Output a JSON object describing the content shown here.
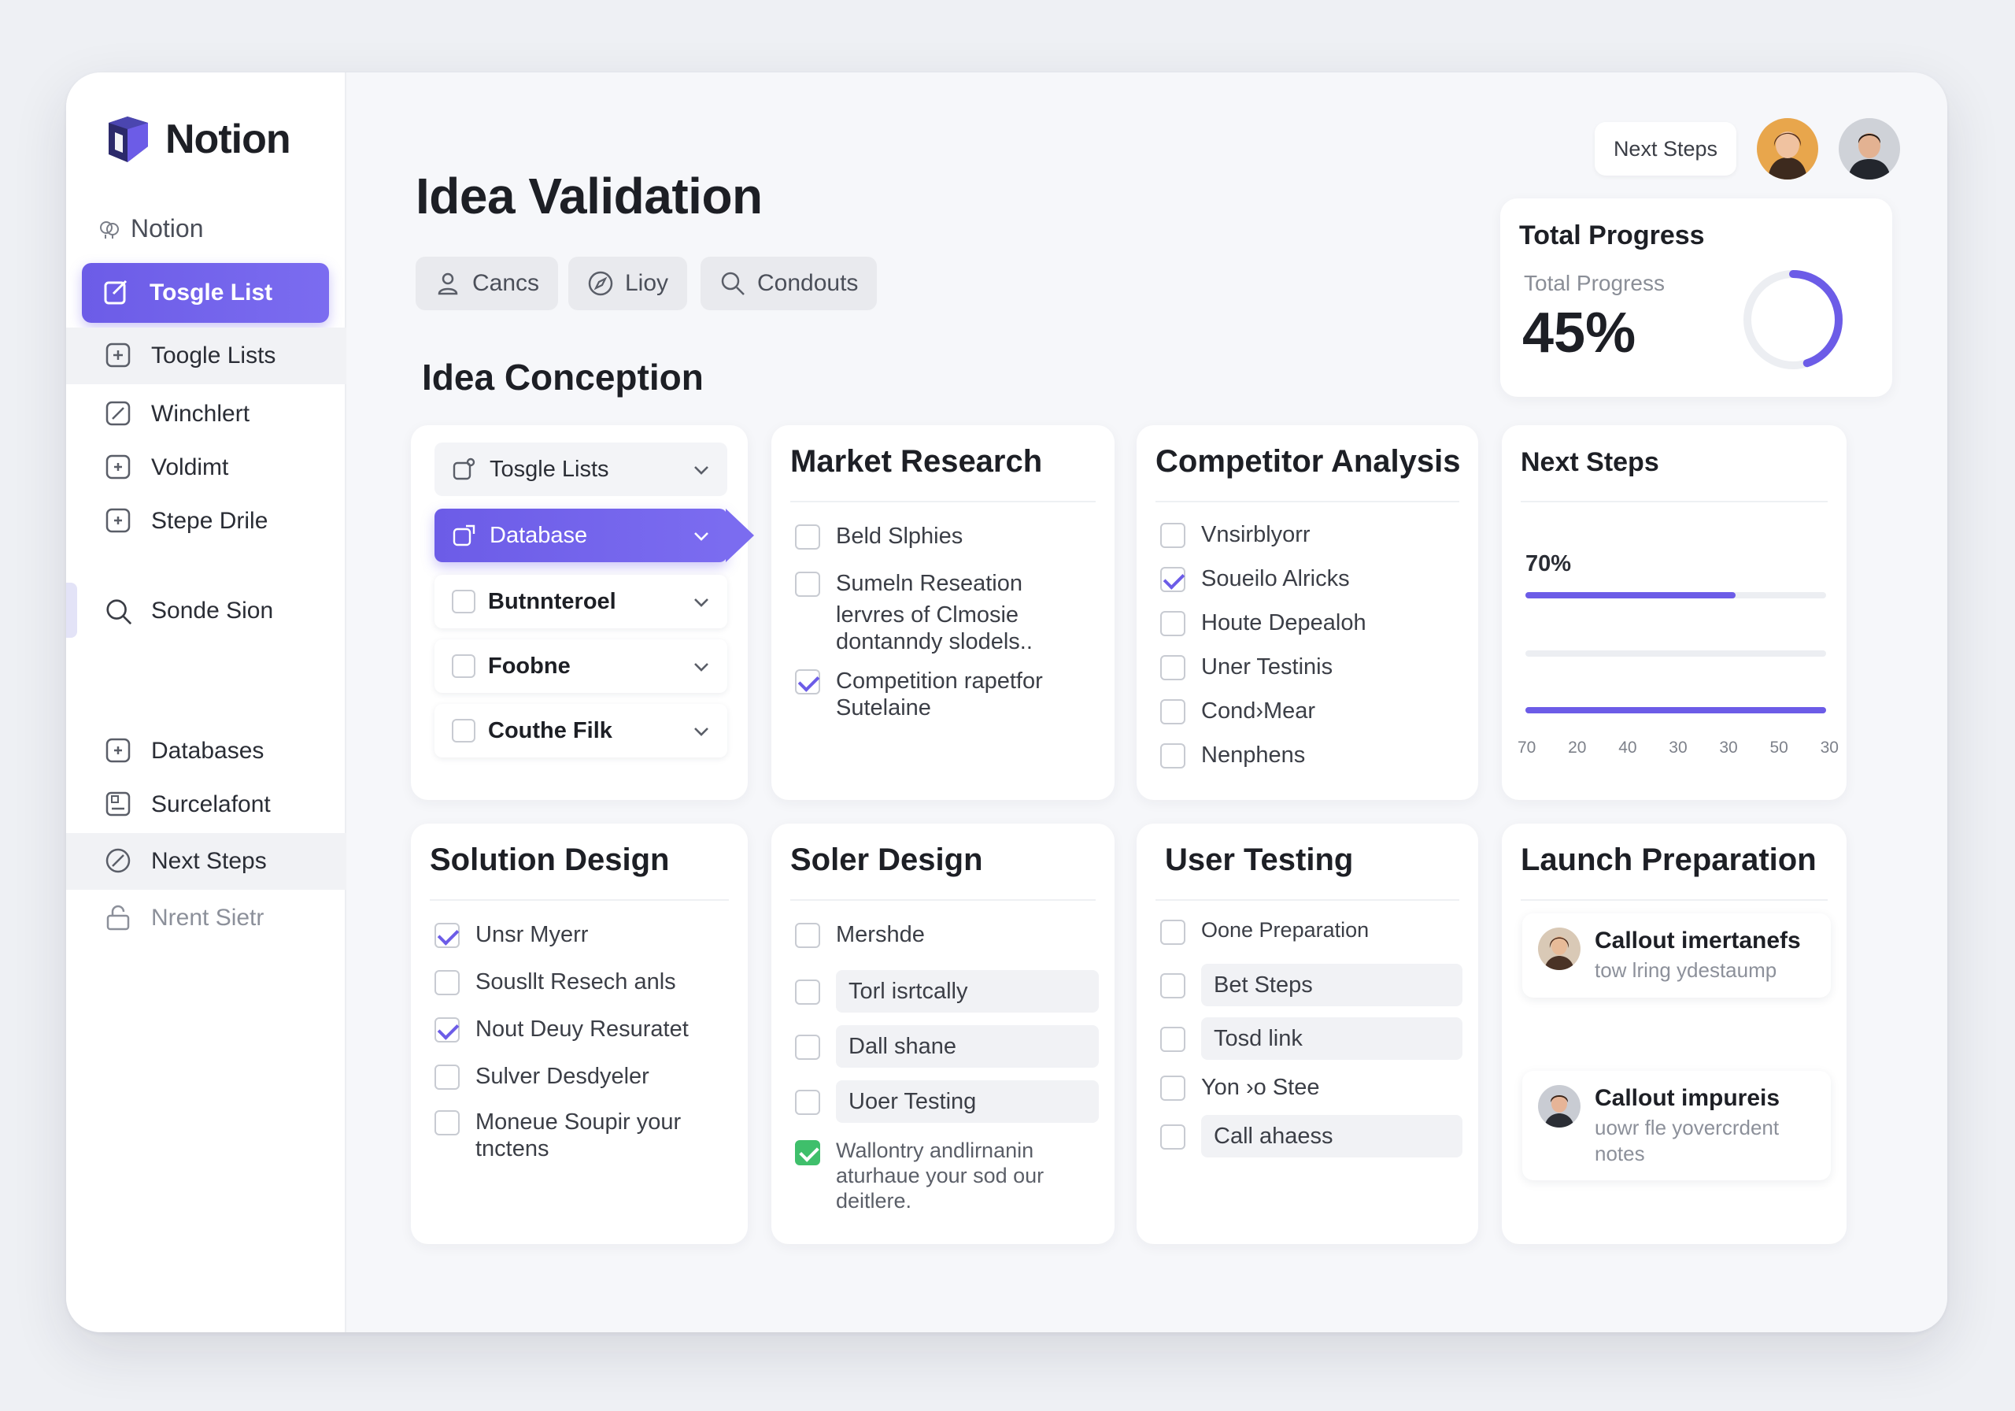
{
  "brand": {
    "name": "Notion"
  },
  "sidebar": {
    "workspace": "Notion",
    "items": [
      {
        "label": "Tosgle List"
      },
      {
        "label": "Toogle Lists"
      },
      {
        "label": "Winchlert"
      },
      {
        "label": "Voldimt"
      },
      {
        "label": "Stepe Drile"
      },
      {
        "label": "Sonde Sion"
      },
      {
        "label": "Databases"
      },
      {
        "label": "Surcelafont"
      },
      {
        "label": "Next Steps"
      },
      {
        "label": "Nrent Sietr"
      }
    ]
  },
  "header": {
    "title": "Idea Validation",
    "chips": [
      {
        "label": "Cancs",
        "icon": "user-icon"
      },
      {
        "label": "Lioy",
        "icon": "compass-icon"
      },
      {
        "label": "Condouts",
        "icon": "search-icon"
      }
    ],
    "pill": "Next Steps"
  },
  "section": {
    "title": "Idea Conception"
  },
  "toggle_list": {
    "items": [
      {
        "label": "Tosgle Lists"
      },
      {
        "label": "Database"
      },
      {
        "label": "Butnnteroel"
      },
      {
        "label": "Foobne"
      },
      {
        "label": "Couthe Filk"
      }
    ]
  },
  "market_research": {
    "title": "Market Research",
    "items": [
      {
        "label": "Beld Slphies",
        "checked": false
      },
      {
        "label": "Sumeln Reseation",
        "checked": false
      },
      {
        "label": "lervres of Clmosie dontanndy slodels..",
        "checked": null
      },
      {
        "label": "Competition rapetfor Sutelaine",
        "checked": true
      }
    ]
  },
  "competitor_analysis": {
    "title": "Competitor Analysis",
    "items": [
      {
        "label": "Vnsirblyorr",
        "checked": false
      },
      {
        "label": "Soueilo Alricks",
        "checked": true
      },
      {
        "label": "Houte Depealoh",
        "checked": false
      },
      {
        "label": "Uner Testinis",
        "checked": false
      },
      {
        "label": "Cond›Mear",
        "checked": false
      },
      {
        "label": "Nenphens",
        "checked": false
      }
    ]
  },
  "total_progress": {
    "title": "Total Progress",
    "label": "Total Progress",
    "value": "45%",
    "fraction": 0.45,
    "accent": "#6c5ce7"
  },
  "next_steps": {
    "title": "Next Steps",
    "value_label": "70%",
    "bar1": 0.7,
    "bar2": 0.0,
    "bar3": 1.0,
    "axis": [
      "70",
      "20",
      "40",
      "30",
      "30",
      "50",
      "30"
    ]
  },
  "solution_design": {
    "title": "Solution Design",
    "items": [
      {
        "label": "Unsr Myerr",
        "checked": true
      },
      {
        "label": "Sousllt Resech anls",
        "checked": false
      },
      {
        "label": "Nout Deuy Resuratet",
        "checked": true
      },
      {
        "label": "Sulver Desdyeler",
        "checked": false
      },
      {
        "label": "Moneue Soupir your tnctens",
        "checked": false
      }
    ]
  },
  "soler_design": {
    "title": "Soler Design",
    "items": [
      {
        "label": "Mershde",
        "field": false
      },
      {
        "label": "Torl isrtcally",
        "field": true
      },
      {
        "label": "Dall shane",
        "field": true
      },
      {
        "label": "Uoer Testing",
        "field": true
      },
      {
        "label": "Wallontry andlirnanin aturhaue your sod our deitlere.",
        "field": false,
        "green": true
      }
    ]
  },
  "user_testing": {
    "title": "User Testing",
    "items": [
      {
        "label": "Oone Preparation",
        "field": false
      },
      {
        "label": "Bet Steps",
        "field": true
      },
      {
        "label": "Tosd link",
        "field": true
      },
      {
        "label": "Yon ›o Stee",
        "field": false
      },
      {
        "label": "Call ahaess",
        "field": true
      }
    ]
  },
  "launch_preparation": {
    "title": "Launch Preparation",
    "callouts": [
      {
        "title": "Callout imertanefs",
        "subtitle": "tow lring ydestaump"
      },
      {
        "title": "Callout impureis",
        "subtitle": "uowr fle yovercrdent notes"
      }
    ]
  }
}
